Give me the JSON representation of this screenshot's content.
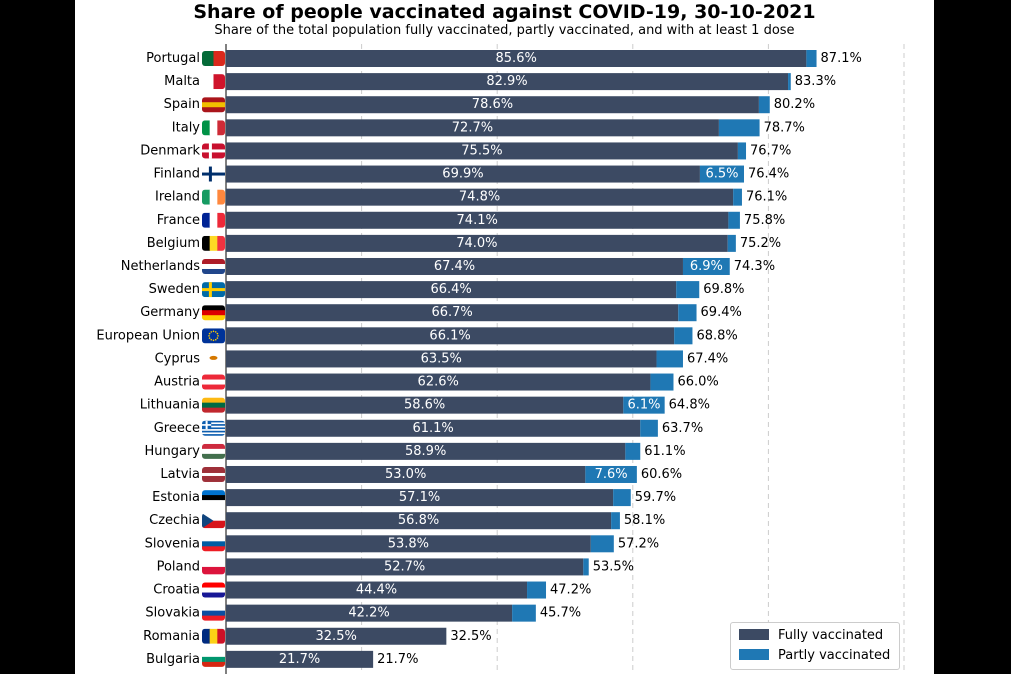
{
  "colors": {
    "fully": "#3c4a63",
    "partly": "#1f78b4",
    "background": "#ffffff",
    "frame": "#000000",
    "grid": "#cccccc"
  },
  "chart_data": {
    "type": "bar",
    "orientation": "horizontal",
    "stacked": true,
    "title": "Share of people vaccinated against COVID-19, 30-10-2021",
    "subtitle": "Share of the total population fully vaccinated, partly vaccinated, and with at least 1 dose",
    "xlim": [
      0,
      100
    ],
    "grid": "vertical dashed",
    "legend_position": "bottom-right",
    "categories": [
      "Portugal",
      "Malta",
      "Spain",
      "Italy",
      "Denmark",
      "Finland",
      "Ireland",
      "France",
      "Belgium",
      "Netherlands",
      "Sweden",
      "Germany",
      "European Union",
      "Cyprus",
      "Austria",
      "Lithuania",
      "Greece",
      "Hungary",
      "Latvia",
      "Estonia",
      "Czechia",
      "Slovenia",
      "Poland",
      "Croatia",
      "Slovakia",
      "Romania",
      "Bulgaria"
    ],
    "series": [
      {
        "name": "Fully vaccinated",
        "values": [
          85.6,
          82.9,
          78.6,
          72.7,
          75.5,
          69.9,
          74.8,
          74.1,
          74.0,
          67.4,
          66.4,
          66.7,
          66.1,
          63.5,
          62.6,
          58.6,
          61.1,
          58.9,
          53.0,
          57.1,
          56.8,
          53.8,
          52.7,
          44.4,
          42.2,
          32.5,
          21.7
        ]
      },
      {
        "name": "Partly vaccinated",
        "values": [
          1.5,
          0.4,
          1.6,
          6.0,
          1.2,
          6.5,
          1.3,
          1.7,
          1.2,
          6.9,
          3.4,
          2.7,
          2.7,
          3.9,
          3.4,
          6.1,
          2.6,
          2.2,
          7.6,
          2.6,
          1.3,
          3.4,
          0.8,
          2.8,
          3.5,
          0.0,
          0.0
        ]
      }
    ],
    "fully_labels": [
      "85.6%",
      "82.9%",
      "78.6%",
      "72.7%",
      "75.5%",
      "69.9%",
      "74.8%",
      "74.1%",
      "74.0%",
      "67.4%",
      "66.4%",
      "66.7%",
      "66.1%",
      "63.5%",
      "62.6%",
      "58.6%",
      "61.1%",
      "58.9%",
      "53.0%",
      "57.1%",
      "56.8%",
      "53.8%",
      "52.7%",
      "44.4%",
      "42.2%",
      "32.5%",
      "21.7%"
    ],
    "partly_labels": [
      "",
      "",
      "",
      "",
      "",
      "6.5%",
      "",
      "",
      "",
      "6.9%",
      "",
      "",
      "",
      "",
      "",
      "6.1%",
      "",
      "",
      "7.6%",
      "",
      "",
      "",
      "",
      "",
      "",
      "",
      ""
    ],
    "total_labels": [
      "87.1%",
      "83.3%",
      "80.2%",
      "78.7%",
      "76.7%",
      "76.4%",
      "76.1%",
      "75.8%",
      "75.2%",
      "74.3%",
      "69.8%",
      "69.4%",
      "68.8%",
      "67.4%",
      "66.0%",
      "64.8%",
      "63.7%",
      "61.1%",
      "60.6%",
      "59.7%",
      "58.1%",
      "57.2%",
      "53.5%",
      "47.2%",
      "45.7%",
      "32.5%",
      "21.7%"
    ],
    "flags": [
      {
        "type": "v",
        "colors": [
          "#046a38",
          "#da291c"
        ]
      },
      {
        "type": "v",
        "colors": [
          "#ffffff",
          "#cf142b"
        ]
      },
      {
        "type": "h",
        "colors": [
          "#aa151b",
          "#f1bf00",
          "#aa151b"
        ]
      },
      {
        "type": "v",
        "colors": [
          "#009246",
          "#ffffff",
          "#ce2b37"
        ]
      },
      {
        "type": "cross",
        "colors": [
          "#c8102e",
          "#ffffff"
        ]
      },
      {
        "type": "cross",
        "colors": [
          "#ffffff",
          "#002f6c"
        ]
      },
      {
        "type": "v",
        "colors": [
          "#169b62",
          "#ffffff",
          "#ff883e"
        ]
      },
      {
        "type": "v",
        "colors": [
          "#002395",
          "#ffffff",
          "#ed2939"
        ]
      },
      {
        "type": "v",
        "colors": [
          "#000000",
          "#fdda24",
          "#ef3340"
        ]
      },
      {
        "type": "h",
        "colors": [
          "#ae1c28",
          "#ffffff",
          "#21468b"
        ]
      },
      {
        "type": "cross",
        "colors": [
          "#006aa7",
          "#fecc00"
        ]
      },
      {
        "type": "h",
        "colors": [
          "#000000",
          "#dd0000",
          "#ffce00"
        ]
      },
      {
        "type": "eu",
        "colors": [
          "#003399",
          "#ffcc00"
        ]
      },
      {
        "type": "cy",
        "colors": [
          "#ffffff",
          "#d57800"
        ]
      },
      {
        "type": "h",
        "colors": [
          "#ed2939",
          "#ffffff",
          "#ed2939"
        ]
      },
      {
        "type": "h",
        "colors": [
          "#fdb913",
          "#006a44",
          "#c1272d"
        ]
      },
      {
        "type": "gr",
        "colors": [
          "#0d5eaf",
          "#ffffff"
        ]
      },
      {
        "type": "h",
        "colors": [
          "#cd2a3e",
          "#ffffff",
          "#436f4d"
        ]
      },
      {
        "type": "h5",
        "colors": [
          "#9e3039",
          "#ffffff",
          "#9e3039"
        ]
      },
      {
        "type": "h",
        "colors": [
          "#0072ce",
          "#000000",
          "#ffffff"
        ]
      },
      {
        "type": "cz",
        "colors": [
          "#ffffff",
          "#d7141a",
          "#11457e"
        ]
      },
      {
        "type": "h",
        "colors": [
          "#ffffff",
          "#005da4",
          "#ed1c24"
        ]
      },
      {
        "type": "h2",
        "colors": [
          "#ffffff",
          "#dc143c"
        ]
      },
      {
        "type": "h",
        "colors": [
          "#ff0000",
          "#ffffff",
          "#171796"
        ]
      },
      {
        "type": "h",
        "colors": [
          "#ffffff",
          "#0b4ea2",
          "#ee1c25"
        ]
      },
      {
        "type": "v",
        "colors": [
          "#002b7f",
          "#fcd116",
          "#ce1126"
        ]
      },
      {
        "type": "h",
        "colors": [
          "#ffffff",
          "#00966e",
          "#d62612"
        ]
      }
    ]
  },
  "legend": {
    "items": [
      {
        "label": "Fully vaccinated"
      },
      {
        "label": "Partly vaccinated"
      }
    ]
  }
}
